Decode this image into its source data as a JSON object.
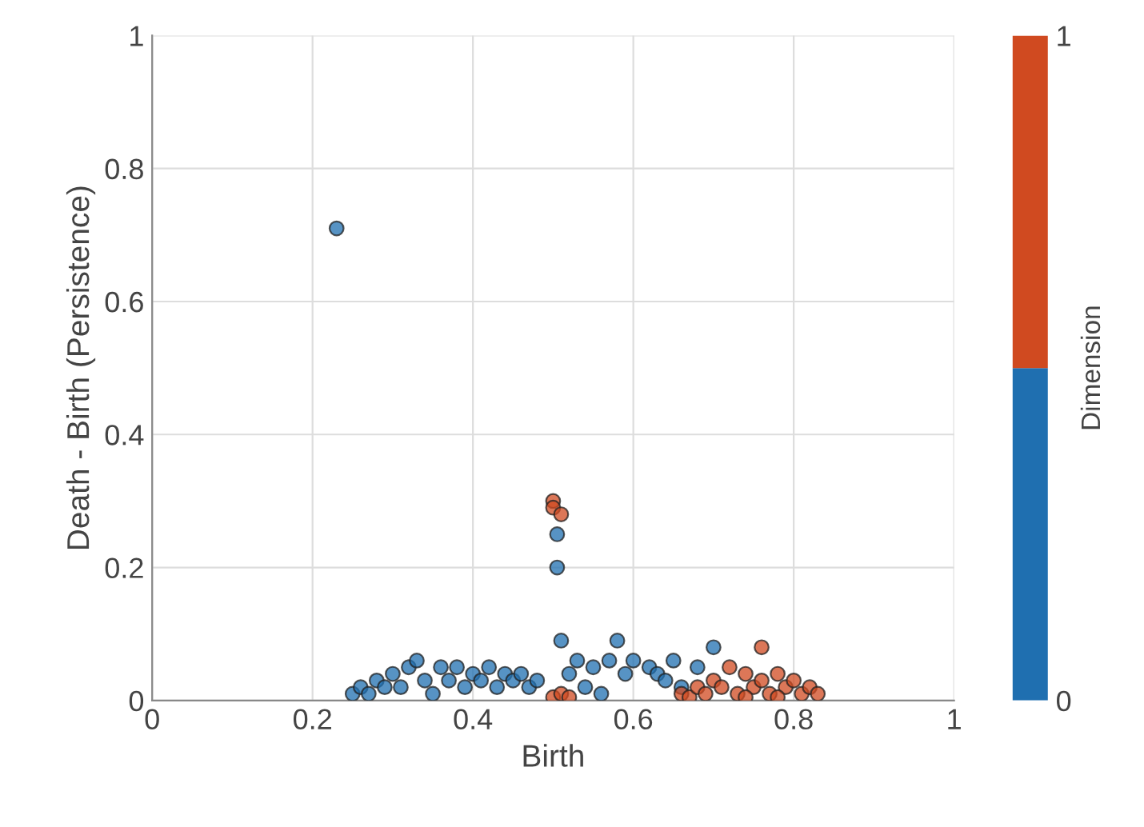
{
  "chart_data": {
    "type": "scatter",
    "xlabel": "Birth",
    "ylabel": "Death - Birth (Persistence)",
    "clabel": "Dimension",
    "xlim": [
      0,
      1
    ],
    "ylim": [
      0,
      1
    ],
    "xticks": [
      0,
      0.2,
      0.4,
      0.6,
      0.8,
      1
    ],
    "yticks": [
      0,
      0.2,
      0.4,
      0.6,
      0.8,
      1
    ],
    "grid": true,
    "marker": "circle",
    "clim": [
      0,
      1
    ],
    "cticks": [
      0,
      1
    ],
    "series": [
      {
        "color": "#1f6fb0",
        "x": [
          0.23,
          0.25,
          0.26,
          0.27,
          0.28,
          0.29,
          0.3,
          0.31,
          0.32,
          0.33,
          0.34,
          0.35,
          0.36,
          0.37,
          0.38,
          0.39,
          0.4,
          0.41,
          0.42,
          0.43,
          0.44,
          0.45,
          0.46,
          0.47,
          0.48,
          0.505,
          0.505,
          0.51,
          0.52,
          0.53,
          0.54,
          0.55,
          0.56,
          0.57,
          0.58,
          0.59,
          0.6,
          0.62,
          0.63,
          0.64,
          0.65,
          0.66,
          0.68,
          0.7
        ],
        "values": [
          0.71,
          0.01,
          0.02,
          0.01,
          0.03,
          0.02,
          0.04,
          0.02,
          0.05,
          0.06,
          0.03,
          0.01,
          0.05,
          0.03,
          0.05,
          0.02,
          0.04,
          0.03,
          0.05,
          0.02,
          0.04,
          0.03,
          0.04,
          0.02,
          0.03,
          0.2,
          0.25,
          0.09,
          0.04,
          0.06,
          0.02,
          0.05,
          0.01,
          0.06,
          0.09,
          0.04,
          0.06,
          0.05,
          0.04,
          0.03,
          0.06,
          0.02,
          0.05,
          0.08
        ]
      },
      {
        "color": "#d04a20",
        "x": [
          0.5,
          0.5,
          0.51,
          0.5,
          0.51,
          0.52,
          0.66,
          0.67,
          0.68,
          0.69,
          0.7,
          0.71,
          0.72,
          0.73,
          0.74,
          0.75,
          0.76,
          0.76,
          0.77,
          0.78,
          0.79,
          0.8,
          0.81,
          0.82,
          0.83,
          0.74,
          0.78
        ],
        "values": [
          0.3,
          0.29,
          0.28,
          0.005,
          0.01,
          0.005,
          0.01,
          0.005,
          0.02,
          0.01,
          0.03,
          0.02,
          0.05,
          0.01,
          0.04,
          0.02,
          0.08,
          0.03,
          0.01,
          0.04,
          0.02,
          0.03,
          0.01,
          0.02,
          0.01,
          0.005,
          0.005
        ]
      }
    ]
  }
}
